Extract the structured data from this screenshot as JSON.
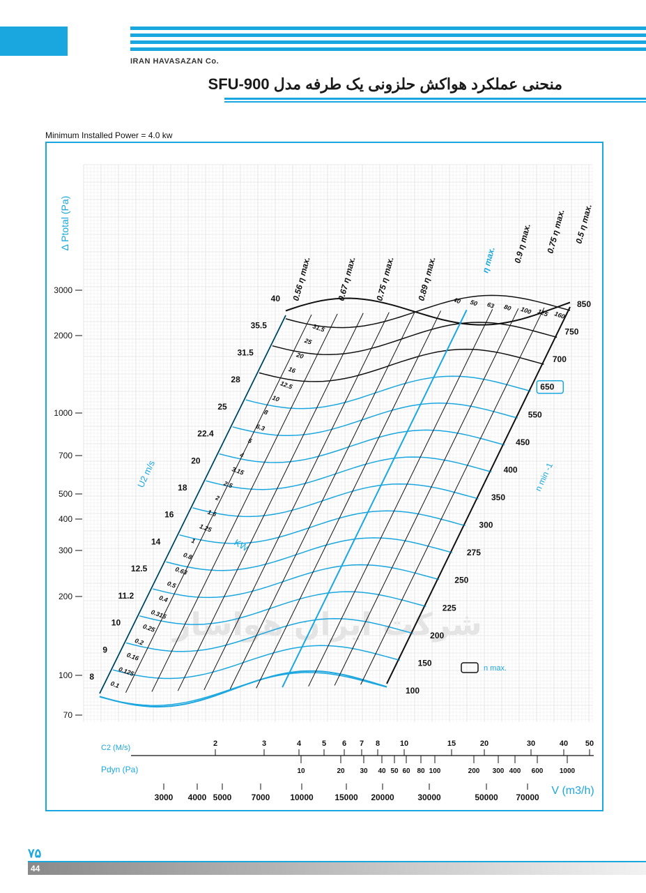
{
  "header": {
    "company": "IRAN HAVASAZAN Co.",
    "title": "منحنی عملکرد هواکش حلزونی یک طرفه مدل SFU-900",
    "min_power": "Minimum Installed Power = 4.0 kw"
  },
  "footer": {
    "page_fa": "۷۵",
    "page": "44"
  },
  "colors": {
    "accent": "#1aa7e0",
    "ink": "#111111",
    "grid": "#d6d6d6"
  },
  "chart_data": {
    "type": "line",
    "y_axis": {
      "label": "Δ Ptotal (Pa)",
      "ticks": [
        "3000",
        "2000",
        "1000",
        "700",
        "500",
        "400",
        "300",
        "200",
        "100",
        "70"
      ],
      "tick_values": [
        3000,
        2000,
        1000,
        700,
        500,
        400,
        300,
        200,
        100,
        70
      ],
      "scale": "log"
    },
    "x_axis": {
      "label": "V (m3/h)",
      "ticks": [
        "3000",
        "4000",
        "5000",
        "7000",
        "10000",
        "15000",
        "20000",
        "30000",
        "50000",
        "70000"
      ],
      "tick_values": [
        3000,
        4000,
        5000,
        7000,
        10000,
        15000,
        20000,
        30000,
        50000,
        70000
      ],
      "scale": "log"
    },
    "c2_axis": {
      "label": "C2 (M/s)",
      "ticks": [
        "2",
        "3",
        "4",
        "5",
        "6",
        "7",
        "8",
        "10",
        "15",
        "20",
        "30",
        "40",
        "50"
      ]
    },
    "pdyn_axis": {
      "label": "Pdyn (Pa)",
      "ticks": [
        "10",
        "20",
        "30",
        "40",
        "50",
        "60",
        "80",
        "100",
        "200",
        "300",
        "400",
        "600",
        "1000"
      ]
    },
    "speed_axis": {
      "label": "n min -1",
      "values": [
        "100",
        "150",
        "200",
        "225",
        "250",
        "275",
        "300",
        "350",
        "400",
        "450",
        "550",
        "650",
        "700",
        "750",
        "850"
      ],
      "highlight": "650"
    },
    "tip_speed_axis": {
      "label": "U2 m/s",
      "values": [
        "8",
        "9",
        "10",
        "11.2",
        "12.5",
        "14",
        "16",
        "18",
        "20",
        "22.4",
        "25",
        "28",
        "31.5",
        "35.5",
        "40"
      ]
    },
    "power_labels": {
      "label": "KW",
      "values": [
        "0.1",
        "0.125",
        "0.16",
        "0.2",
        "0.25",
        "0.315",
        "0.4",
        "0.5",
        "0.63",
        "0.8",
        "1",
        "1.25",
        "1.6",
        "2",
        "2.5",
        "3.15",
        "4",
        "5",
        "6.3",
        "8",
        "10",
        "12.5",
        "16",
        "20",
        "25",
        "31.5",
        "40",
        "50",
        "63",
        "80",
        "100",
        "125",
        "160"
      ]
    },
    "efficiency_lines": [
      "0.56 η max.",
      "0.67 η max.",
      "0.75 η max.",
      "0.89 η max.",
      "η max.",
      "0.9 η max.",
      "0.75 η max.",
      "0.5 η max."
    ],
    "legend": {
      "box_label": "n max."
    },
    "watermark": "شرکت ایران هواساز"
  }
}
